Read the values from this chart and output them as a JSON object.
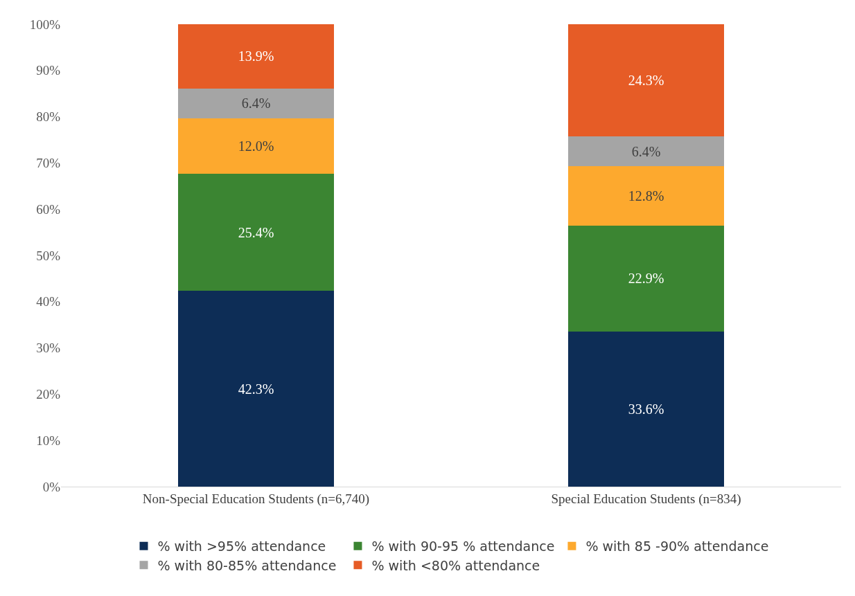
{
  "chart_data": {
    "type": "bar",
    "stacked": true,
    "categories": [
      "Non-Special Education Students (n=6,740)",
      "Special Education Students (n=834)"
    ],
    "ylim": [
      0,
      100
    ],
    "yticks": [
      {
        "value": 0,
        "label": "0%"
      },
      {
        "value": 10,
        "label": "10%"
      },
      {
        "value": 20,
        "label": "20%"
      },
      {
        "value": 30,
        "label": "30%"
      },
      {
        "value": 40,
        "label": "40%"
      },
      {
        "value": 50,
        "label": "50%"
      },
      {
        "value": 60,
        "label": "60%"
      },
      {
        "value": 70,
        "label": "70%"
      },
      {
        "value": 80,
        "label": "80%"
      },
      {
        "value": 90,
        "label": "90%"
      },
      {
        "value": 100,
        "label": "100%"
      }
    ],
    "grid": false,
    "legend": "bottom",
    "series": [
      {
        "name": "% with >95% attendance",
        "color": "#0d2d56",
        "values": [
          42.3,
          33.6
        ],
        "value_labels": [
          "42.3%",
          "33.6%"
        ]
      },
      {
        "name": "% with 90-95 % attendance",
        "color": "#3b8532",
        "values": [
          25.4,
          22.9
        ],
        "value_labels": [
          "25.4%",
          "22.9%"
        ]
      },
      {
        "name": "% with 85 -90% attendance",
        "color": "#fda92e",
        "values": [
          12.0,
          12.8
        ],
        "value_labels": [
          "12.0%",
          "12.8%"
        ]
      },
      {
        "name": "% with 80-85% attendance",
        "color": "#a5a5a5",
        "values": [
          6.4,
          6.4
        ],
        "value_labels": [
          "6.4%",
          "6.4%"
        ]
      },
      {
        "name": "% with <80% attendance",
        "color": "#e65c26",
        "values": [
          13.9,
          24.3
        ],
        "value_labels": [
          "13.9%",
          "24.3%"
        ]
      }
    ]
  }
}
